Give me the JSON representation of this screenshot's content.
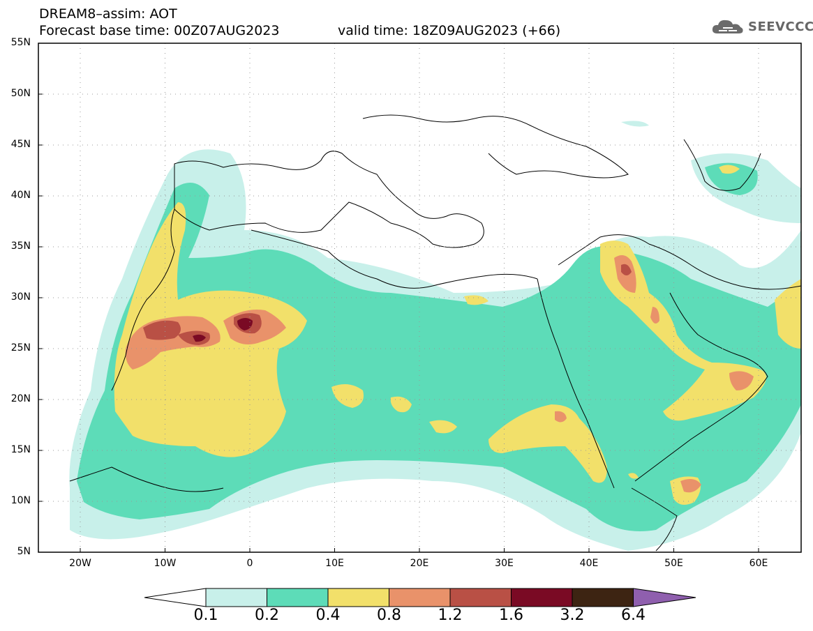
{
  "header": {
    "line1": "DREAM8–assim: AOT",
    "line2": "Forecast base time: 00Z07AUG2023",
    "valid": "valid time: 18Z09AUG2023 (+66)"
  },
  "logo": {
    "text": "SEEVCCC",
    "icon": "cloud-icon"
  },
  "map": {
    "lat_labels": [
      "55N",
      "50N",
      "45N",
      "40N",
      "35N",
      "30N",
      "25N",
      "20N",
      "15N",
      "10N",
      "5N"
    ],
    "lon_labels": [
      "20W",
      "10W",
      "0",
      "10E",
      "20E",
      "30E",
      "40E",
      "50E",
      "60E"
    ],
    "colors": {
      "c0_1": "#c8f0ea",
      "c0_2": "#5ddcb8",
      "c0_4": "#f2e06a",
      "c0_8": "#e9926a",
      "c1_2": "#b95045",
      "c1_6": "#7a0a24",
      "c3_2": "#3d2412",
      "c6_4": "#8f5fae"
    }
  },
  "colorbar": {
    "labels": [
      "0.1",
      "0.2",
      "0.4",
      "0.8",
      "1.2",
      "1.6",
      "3.2",
      "6.4"
    ],
    "colors": [
      "#c8f0ea",
      "#5ddcb8",
      "#f2e06a",
      "#e9926a",
      "#b95045",
      "#7a0a24",
      "#3d2412"
    ],
    "over_color": "#8f5fae",
    "under_color": "#ffffff"
  }
}
